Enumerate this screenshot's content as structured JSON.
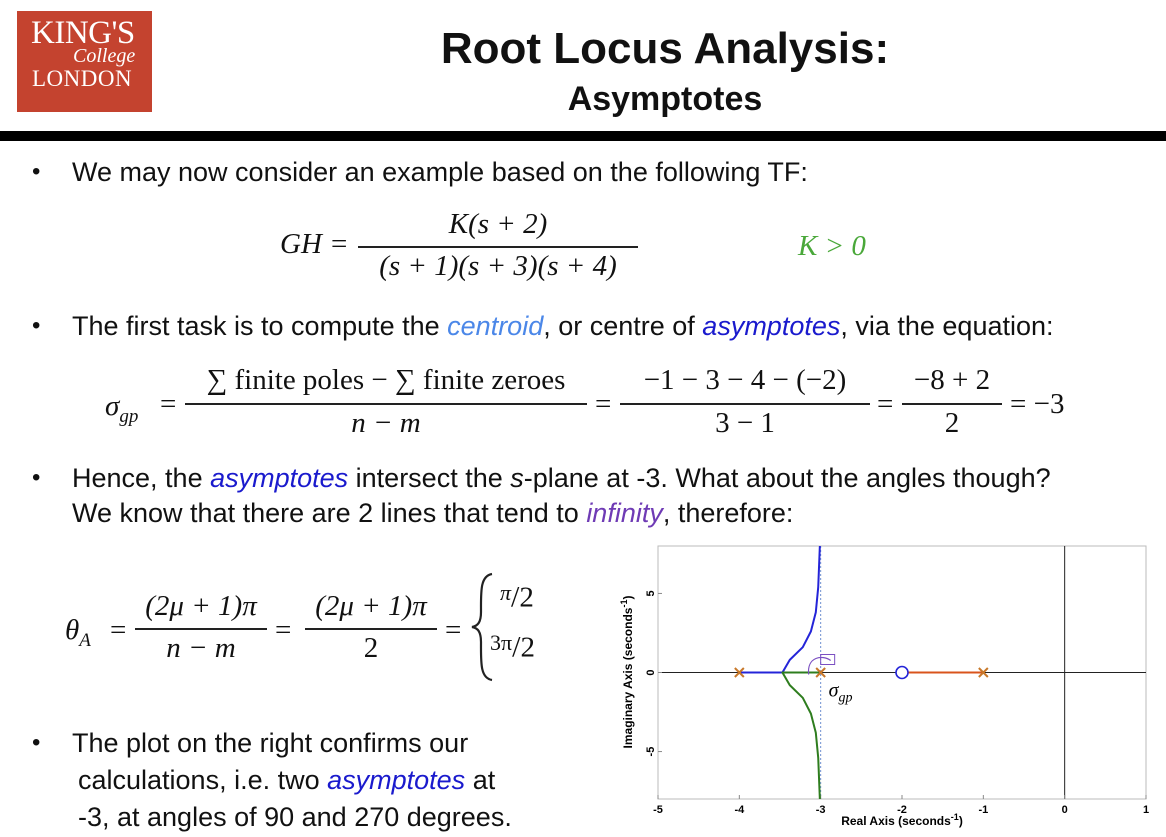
{
  "header": {
    "logo": {
      "line1": "KING'S",
      "line2": "College",
      "line3": "LONDON"
    },
    "title": "Root Locus Analysis:",
    "subtitle": "Asymptotes"
  },
  "bullets": {
    "b1": "We may now consider an example based on the following TF:",
    "b2_pre": "The first task is to compute the ",
    "b2_centroid": "centroid",
    "b2_mid": ", or centre of ",
    "b2_asym": "asymptotes",
    "b2_post": ", via the equation:",
    "b3_l1_pre": "Hence, the ",
    "b3_l1_asym": "asymptotes",
    "b3_l1_mid": " intersect the ",
    "b3_l1_s": "s",
    "b3_l1_post": "-plane at -3. What about the angles though?",
    "b3_l2_pre": "We know that there are 2 lines that tend to ",
    "b3_l2_inf": "infinity",
    "b3_l2_post": ", therefore:",
    "b4_l1": "The plot on the right confirms our",
    "b4_l2_pre": "calculations, i.e. two ",
    "b4_l2_asym": "asymptotes",
    "b4_l2_post": " at",
    "b4_l3": "-3, at angles of 90 and 270 degrees."
  },
  "eq_tf": {
    "lhs": "GH =",
    "num": "K(s + 2)",
    "den": "(s + 1)(s + 3)(s + 4)",
    "cond": "K > 0"
  },
  "eq_centroid": {
    "lhs": "σ",
    "lhs_sub": "gp",
    "eq": "=",
    "f1_num": "∑ finite poles − ∑ finite zeroes",
    "f1_den": "n − m",
    "f2_num": "−1 − 3 − 4 − (−2)",
    "f2_den": "3 − 1",
    "f3_num": "−8 + 2",
    "f3_den": "2",
    "result": "= −3"
  },
  "eq_angle": {
    "lhs": "θ",
    "lhs_sub": "A",
    "eq": "=",
    "f1_num": "(2μ + 1)π",
    "f1_den": "n − m",
    "f2_num": "(2μ + 1)π",
    "f2_den": "2",
    "case1_num": "π",
    "case1_den": "2",
    "case2_num": "3π",
    "case2_den": "2"
  },
  "chart_data": {
    "type": "line",
    "xlabel": "Real Axis (seconds",
    "xlabel_sup": "-1",
    "xlabel_close": ")",
    "ylabel": "Imaginary Axis (seconds",
    "ylabel_sup": "-1",
    "ylabel_close": ")",
    "xlim": [
      -5,
      1
    ],
    "ylim": [
      -8,
      8
    ],
    "xticks": [
      -5,
      -4,
      -3,
      -2,
      -1,
      0,
      1
    ],
    "yticks": [
      -5,
      0,
      5
    ],
    "poles": [
      -1,
      -3,
      -4
    ],
    "zeros": [
      -2
    ],
    "centroid_label": "σ",
    "centroid_label_sub": "gp",
    "colors": {
      "branch_up": "#2424d8",
      "branch_down": "#2e7d1e",
      "branch_real": "#d9541c",
      "pole": "#c8782a",
      "zero": "#2424d8"
    },
    "series": [
      {
        "values": [
          [
            -4,
            0
          ],
          [
            -3.47,
            0
          ],
          [
            -3.38,
            0.8
          ],
          [
            -3.22,
            1.6
          ],
          [
            -3.12,
            2.6
          ],
          [
            -3.06,
            3.8
          ],
          [
            -3.03,
            5.4
          ],
          [
            -3.01,
            8
          ]
        ]
      },
      {
        "values": [
          [
            -3,
            0
          ],
          [
            -3.47,
            0
          ],
          [
            -3.38,
            -0.8
          ],
          [
            -3.22,
            -1.6
          ],
          [
            -3.12,
            -2.6
          ],
          [
            -3.06,
            -3.8
          ],
          [
            -3.03,
            -5.4
          ],
          [
            -3.01,
            -8
          ]
        ]
      },
      {
        "values": [
          [
            -2,
            0
          ],
          [
            -1,
            0
          ]
        ]
      }
    ]
  }
}
